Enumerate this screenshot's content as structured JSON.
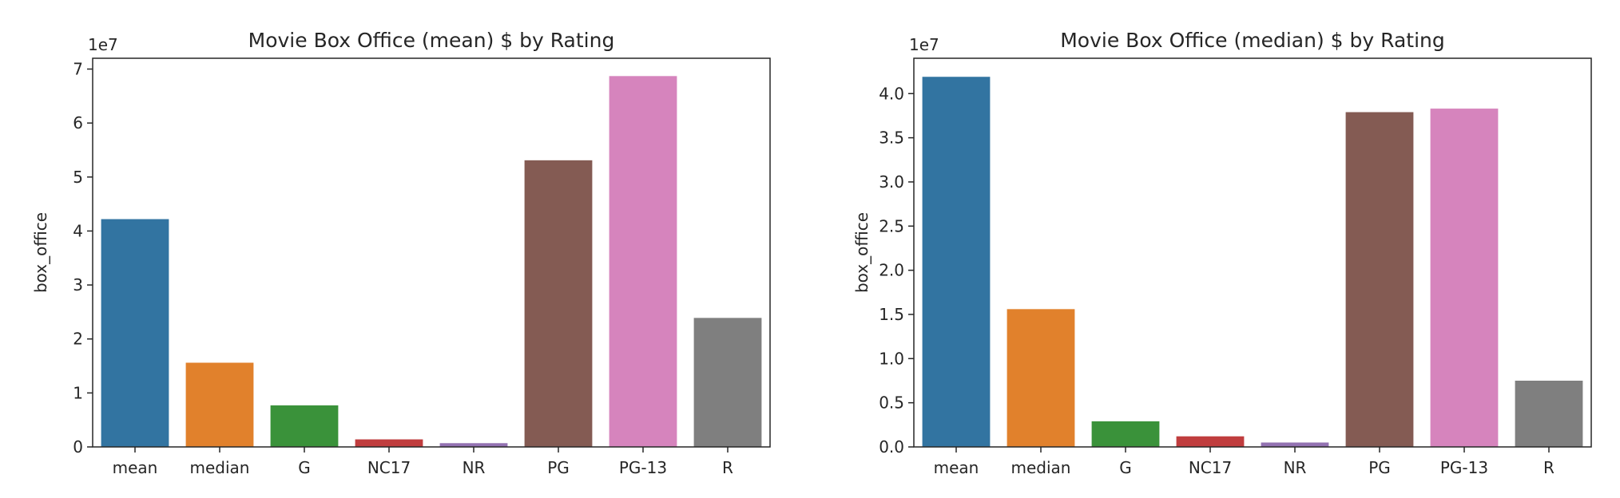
{
  "colors": {
    "mean": "#3274a1",
    "median": "#e1812c",
    "G": "#3a923a",
    "NC17": "#c03d3e",
    "NR": "#9372b2",
    "PG": "#845b53",
    "PG-13": "#d684bd",
    "R": "#7f7f7f"
  },
  "chart_data": [
    {
      "type": "bar",
      "title": "Movie Box Office (mean) $ by Rating",
      "xlabel": "",
      "ylabel": "box_office",
      "y_exponent_label": "1e7",
      "categories": [
        "mean",
        "median",
        "G",
        "NC17",
        "NR",
        "PG",
        "PG-13",
        "R"
      ],
      "values": [
        42200000,
        15600000,
        7700000,
        1400000,
        700000,
        53100000,
        68700000,
        23900000
      ],
      "ylim": [
        0,
        72000000
      ],
      "yticks": [
        0,
        10000000,
        20000000,
        30000000,
        40000000,
        50000000,
        60000000,
        70000000
      ],
      "ytick_labels": [
        "0",
        "1",
        "2",
        "3",
        "4",
        "5",
        "6",
        "7"
      ],
      "grid": false,
      "legend": "none"
    },
    {
      "type": "bar",
      "title": "Movie Box Office (median) $ by Rating",
      "xlabel": "",
      "ylabel": "box_office",
      "y_exponent_label": "1e7",
      "categories": [
        "mean",
        "median",
        "G",
        "NC17",
        "NR",
        "PG",
        "PG-13",
        "R"
      ],
      "values": [
        41900000,
        15600000,
        2900000,
        1200000,
        500000,
        37900000,
        38300000,
        7500000
      ],
      "ylim": [
        0,
        44000000
      ],
      "yticks": [
        0,
        5000000,
        10000000,
        15000000,
        20000000,
        25000000,
        30000000,
        35000000,
        40000000
      ],
      "ytick_labels": [
        "0.0",
        "0.5",
        "1.0",
        "1.5",
        "2.0",
        "2.5",
        "3.0",
        "3.5",
        "4.0"
      ],
      "grid": false,
      "legend": "none"
    }
  ]
}
